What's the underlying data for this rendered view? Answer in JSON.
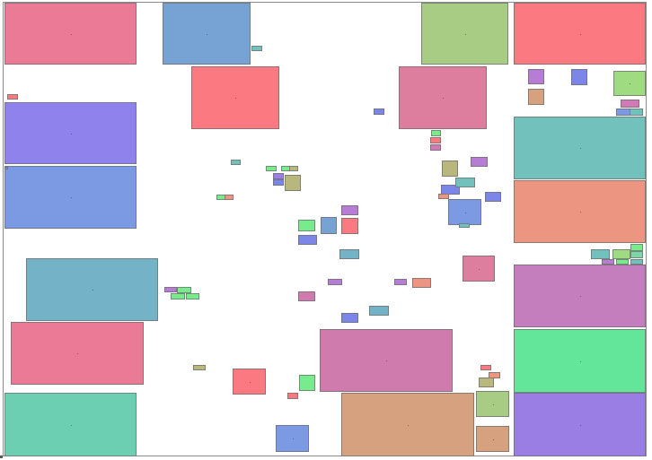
{
  "palette": {
    "pink": "#eb7a97",
    "steel_blue": "#77a2d4",
    "sage": "#a9cc84",
    "salmon_red": "#fb7981",
    "violet": "#8f82ec",
    "periwinkle": "#7b9ae3",
    "rose": "#de7e9e",
    "teal": "#73c1bd",
    "coral": "#ec9580",
    "cadet": "#74b2c7",
    "orchid": "#c47dbd",
    "mint": "#63e699",
    "jade": "#6dcfb2",
    "purple": "#9a7ee3",
    "mauve": "#cf7bae",
    "tan": "#d6a17e",
    "green": "#9fdc81",
    "bright_green": "#78ec8c",
    "khaki": "#b9b67e",
    "lavender": "#b77dd4",
    "blue": "#7c86e8",
    "magenta": "#d07ab6",
    "seafoam": "#7ed6a6"
  }
}
